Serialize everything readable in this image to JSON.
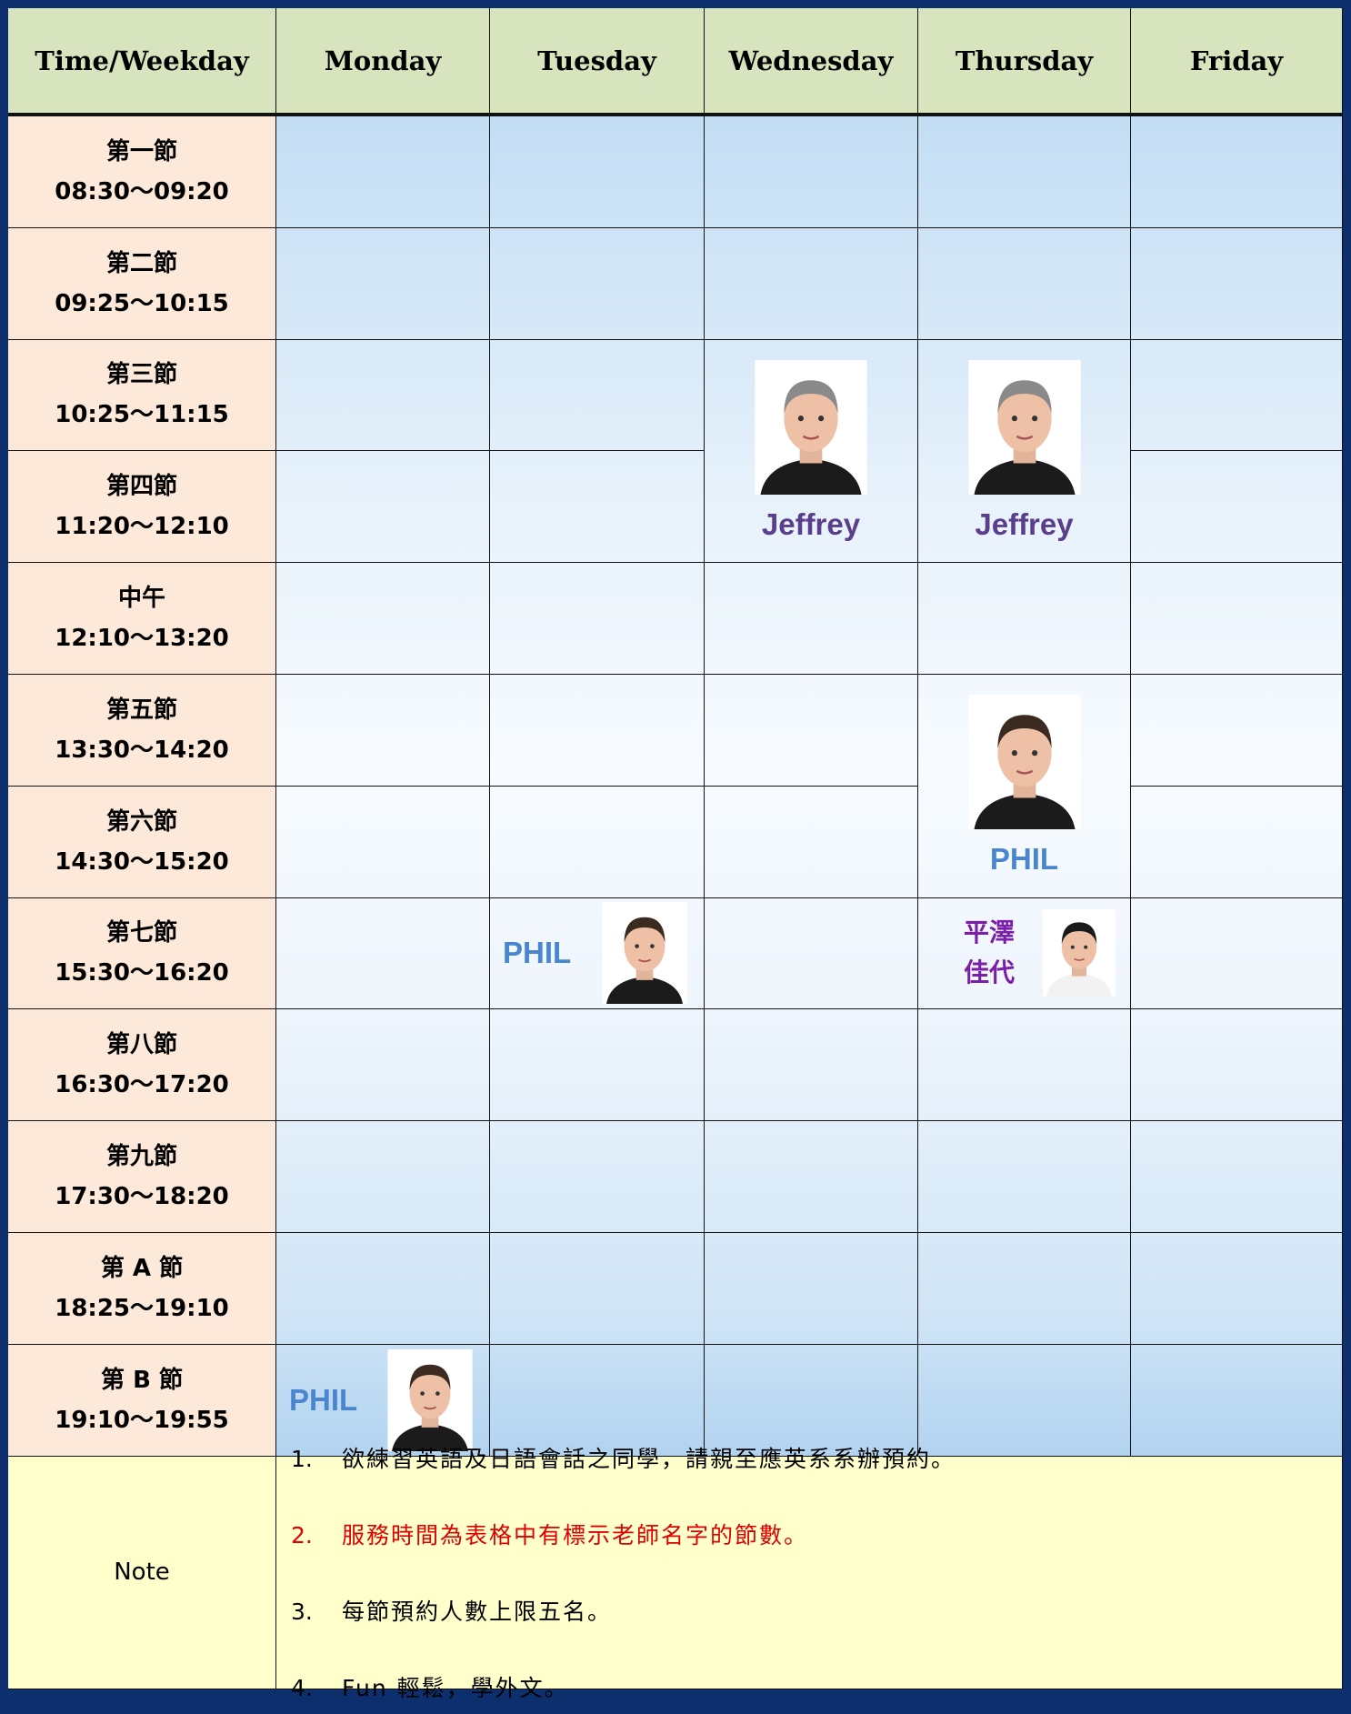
{
  "header": [
    "Time/Weekday",
    "Monday",
    "Tuesday",
    "Wednesday",
    "Thursday",
    "Friday"
  ],
  "rows": [
    {
      "period": "第一節",
      "time": "08:30～09:20",
      "cells": [
        null,
        null,
        null,
        null,
        null
      ]
    },
    {
      "period": "第二節",
      "time": "09:25～10:15",
      "cells": [
        null,
        null,
        null,
        null,
        null
      ]
    },
    {
      "period": "第三節",
      "time": "10:25～11:15",
      "cells": [
        null,
        null,
        {
          "teacher": [
            "Jeffrey"
          ],
          "color": "#5a3e8c"
        },
        {
          "teacher": [
            "Jeffrey"
          ],
          "color": "#5a3e8c"
        },
        null
      ]
    },
    {
      "period": "第四節",
      "time": "11:20～12:10",
      "cells": [
        null,
        null,
        null,
        null,
        null
      ]
    },
    {
      "period": "中午",
      "time": "12:10～13:20",
      "cells": [
        null,
        null,
        null,
        null,
        null
      ]
    },
    {
      "period": "第五節",
      "time": "13:30～14:20",
      "cells": [
        null,
        null,
        null,
        {
          "teacher": [
            "PHIL"
          ],
          "color": "#4a86d0"
        },
        null
      ]
    },
    {
      "period": "第六節",
      "time": "14:30～15:20",
      "cells": [
        null,
        null,
        null,
        null,
        null
      ]
    },
    {
      "period": "第七節",
      "time": "15:30～16:20",
      "cells": [
        null,
        {
          "teacher": [
            "PHIL"
          ],
          "color": "#4a86d0"
        },
        null,
        {
          "teacher": [
            "平澤",
            "佳代"
          ],
          "color": "#7a1fa8"
        },
        null
      ]
    },
    {
      "period": "第八節",
      "time": "16:30～17:20",
      "cells": [
        null,
        null,
        null,
        null,
        null
      ]
    },
    {
      "period": "第九節",
      "time": "17:30～18:20",
      "cells": [
        null,
        null,
        null,
        null,
        null
      ]
    },
    {
      "period": "第 A 節",
      "time": "18:25～19:10",
      "cells": [
        null,
        null,
        null,
        null,
        null
      ]
    },
    {
      "period": "第 B 節",
      "time": "19:10～19:55",
      "cells": [
        {
          "teacher": [
            "PHIL"
          ],
          "color": "#4a86d0"
        },
        null,
        null,
        null,
        null
      ]
    }
  ],
  "note": {
    "label": "Note",
    "items": [
      {
        "number": "1.",
        "text": "欲練習英語及日語會話之同學，請親至應英系系辦預約。"
      },
      {
        "number": "2.",
        "text": "服務時間為表格中有標示老師名字的節數。",
        "color": "#e00000"
      },
      {
        "number": "3.",
        "text": "每節預約人數上限五名。"
      },
      {
        "number": "4.",
        "text": "Fun 輕鬆，學外文。"
      }
    ]
  }
}
